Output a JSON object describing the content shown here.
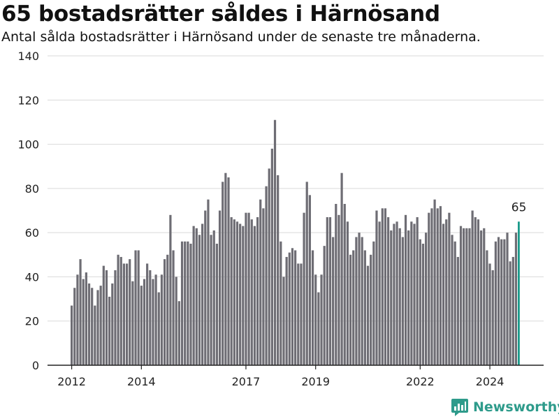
{
  "title": "65 bostadsrätter såldes i Härnösand",
  "subtitle": "Antal sålda bostadsrätter i Härnösand under de senaste tre månaderna.",
  "brand": "Newsworthy",
  "colors": {
    "bar": "#6e6d74",
    "highlight": "#1a9a8a",
    "grid": "#d9d9d9",
    "axis": "#222222",
    "brand": "#2e9b8b"
  },
  "chart_data": {
    "type": "bar",
    "title": "65 bostadsrätter såldes i Härnösand",
    "subtitle": "Antal sålda bostadsrätter i Härnösand under de senaste tre månaderna.",
    "xlabel": "",
    "ylabel": "",
    "ylim": [
      0,
      140
    ],
    "yticks": [
      0,
      20,
      40,
      60,
      80,
      100,
      120,
      140
    ],
    "xtick_labels": [
      "2012",
      "2014",
      "2017",
      "2019",
      "2022",
      "2024"
    ],
    "xtick_dates": [
      "2012-01",
      "2014-01",
      "2017-01",
      "2019-01",
      "2022-01",
      "2024-01"
    ],
    "grid": true,
    "start_month": "2012-01",
    "values": [
      27,
      35,
      41,
      48,
      39,
      42,
      37,
      35,
      27,
      34,
      36,
      45,
      43,
      31,
      37,
      43,
      50,
      49,
      46,
      46,
      48,
      38,
      52,
      52,
      36,
      39,
      46,
      43,
      39,
      41,
      33,
      41,
      48,
      50,
      68,
      52,
      40,
      29,
      56,
      56,
      56,
      55,
      63,
      62,
      59,
      64,
      70,
      75,
      59,
      61,
      55,
      70,
      83,
      87,
      85,
      67,
      66,
      65,
      64,
      63,
      69,
      69,
      66,
      63,
      67,
      75,
      71,
      81,
      89,
      98,
      111,
      86,
      56,
      40,
      49,
      51,
      53,
      52,
      46,
      46,
      69,
      83,
      77,
      52,
      41,
      33,
      41,
      54,
      67,
      67,
      58,
      73,
      68,
      87,
      73,
      65,
      50,
      52,
      58,
      60,
      58,
      52,
      45,
      50,
      56,
      70,
      65,
      71,
      71,
      67,
      61,
      64,
      65,
      62,
      58,
      68,
      61,
      65,
      64,
      67,
      57,
      55,
      60,
      69,
      71,
      75,
      71,
      72,
      64,
      66,
      69,
      59,
      56,
      49,
      63,
      62,
      62,
      62,
      70,
      67,
      66,
      61,
      62,
      52,
      46,
      43,
      56,
      58,
      57,
      57,
      60,
      47,
      49,
      60,
      65
    ],
    "highlight_last": true,
    "last_label": "65"
  }
}
